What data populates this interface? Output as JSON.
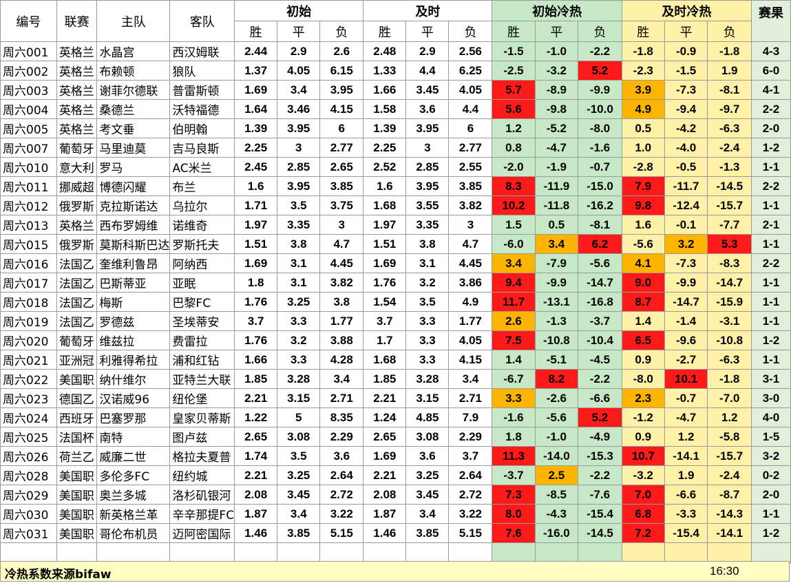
{
  "headers": {
    "id": "编号",
    "league": "联赛",
    "home": "主队",
    "away": "客队",
    "initial": "初始",
    "live": "及时",
    "initial_heat": "初始冷热",
    "live_heat": "及时冷热",
    "result": "赛果",
    "win": "胜",
    "draw": "平",
    "loss": "负"
  },
  "rows": [
    {
      "id": "周六001",
      "league": "英格兰",
      "home": "水晶宫",
      "away": "西汉姆联",
      "o": [
        "2.44",
        "2.9",
        "2.6"
      ],
      "l": [
        "2.48",
        "2.9",
        "2.56"
      ],
      "ih": [
        "-1.5",
        "-1.0",
        "-2.2"
      ],
      "lh": [
        "-1.8",
        "-0.9",
        "-1.8"
      ],
      "res": "4-3",
      "ihc": [
        "",
        "",
        ""
      ],
      "lhc": [
        "",
        "",
        ""
      ]
    },
    {
      "id": "周六002",
      "league": "英格兰",
      "home": "布赖顿",
      "away": "狼队",
      "o": [
        "1.37",
        "4.05",
        "6.15"
      ],
      "l": [
        "1.33",
        "4.4",
        "6.25"
      ],
      "ih": [
        "-2.5",
        "-3.2",
        "5.2"
      ],
      "lh": [
        "-2.3",
        "-1.5",
        "1.9"
      ],
      "res": "6-0",
      "ihc": [
        "",
        "",
        "red"
      ],
      "lhc": [
        "",
        "",
        ""
      ]
    },
    {
      "id": "周六003",
      "league": "英格兰",
      "home": "谢菲尔德联",
      "away": "普雷斯顿",
      "o": [
        "1.69",
        "3.4",
        "3.95"
      ],
      "l": [
        "1.66",
        "3.45",
        "4.05"
      ],
      "ih": [
        "5.7",
        "-8.9",
        "-9.9"
      ],
      "lh": [
        "3.9",
        "-7.3",
        "-8.1"
      ],
      "res": "4-1",
      "ihc": [
        "red",
        "",
        ""
      ],
      "lhc": [
        "org",
        "",
        ""
      ]
    },
    {
      "id": "周六004",
      "league": "英格兰",
      "home": "桑德兰",
      "away": "沃特福德",
      "o": [
        "1.64",
        "3.46",
        "4.15"
      ],
      "l": [
        "1.58",
        "3.6",
        "4.4"
      ],
      "ih": [
        "5.6",
        "-9.8",
        "-10.0"
      ],
      "lh": [
        "4.9",
        "-9.4",
        "-9.7"
      ],
      "res": "2-2",
      "ihc": [
        "red",
        "",
        ""
      ],
      "lhc": [
        "org",
        "",
        ""
      ]
    },
    {
      "id": "周六005",
      "league": "英格兰",
      "home": "考文垂",
      "away": "伯明翰",
      "o": [
        "1.39",
        "3.95",
        "6"
      ],
      "l": [
        "1.39",
        "3.95",
        "6"
      ],
      "ih": [
        "1.2",
        "-5.2",
        "-8.0"
      ],
      "lh": [
        "0.5",
        "-4.2",
        "-6.3"
      ],
      "res": "2-0",
      "ihc": [
        "",
        "",
        ""
      ],
      "lhc": [
        "",
        "",
        ""
      ]
    },
    {
      "id": "周六007",
      "league": "葡萄牙",
      "home": "马里迪莫",
      "away": "吉马良斯",
      "o": [
        "2.25",
        "3",
        "2.77"
      ],
      "l": [
        "2.25",
        "3",
        "2.77"
      ],
      "ih": [
        "0.8",
        "-4.7",
        "-1.6"
      ],
      "lh": [
        "1.0",
        "-4.0",
        "-2.4"
      ],
      "res": "1-2",
      "ihc": [
        "",
        "",
        ""
      ],
      "lhc": [
        "",
        "",
        ""
      ]
    },
    {
      "id": "周六010",
      "league": "意大利",
      "home": "罗马",
      "away": "AC米兰",
      "o": [
        "2.45",
        "2.85",
        "2.65"
      ],
      "l": [
        "2.52",
        "2.85",
        "2.55"
      ],
      "ih": [
        "-2.0",
        "-1.9",
        "-0.7"
      ],
      "lh": [
        "-2.8",
        "-0.5",
        "-1.3"
      ],
      "res": "1-1",
      "ihc": [
        "",
        "",
        ""
      ],
      "lhc": [
        "",
        "",
        ""
      ]
    },
    {
      "id": "周六011",
      "league": "挪威超",
      "home": "博德闪耀",
      "away": "布兰",
      "o": [
        "1.6",
        "3.95",
        "3.85"
      ],
      "l": [
        "1.6",
        "3.95",
        "3.85"
      ],
      "ih": [
        "8.3",
        "-11.9",
        "-15.0"
      ],
      "lh": [
        "7.9",
        "-11.7",
        "-14.5"
      ],
      "res": "2-2",
      "ihc": [
        "red",
        "",
        ""
      ],
      "lhc": [
        "red",
        "",
        ""
      ]
    },
    {
      "id": "周六012",
      "league": "俄罗斯",
      "home": "克拉斯诺达",
      "away": "乌拉尔",
      "o": [
        "1.71",
        "3.5",
        "3.75"
      ],
      "l": [
        "1.68",
        "3.55",
        "3.82"
      ],
      "ih": [
        "10.2",
        "-11.8",
        "-16.2"
      ],
      "lh": [
        "9.8",
        "-12.4",
        "-15.7"
      ],
      "res": "1-1",
      "ihc": [
        "red",
        "",
        ""
      ],
      "lhc": [
        "red",
        "",
        ""
      ]
    },
    {
      "id": "周六013",
      "league": "英格兰",
      "home": "西布罗姆维",
      "away": "诺维奇",
      "o": [
        "1.97",
        "3.35",
        "3"
      ],
      "l": [
        "1.97",
        "3.35",
        "3"
      ],
      "ih": [
        "1.5",
        "0.5",
        "-8.1"
      ],
      "lh": [
        "1.6",
        "-0.1",
        "-7.7"
      ],
      "res": "2-1",
      "ihc": [
        "",
        "",
        ""
      ],
      "lhc": [
        "",
        "",
        ""
      ]
    },
    {
      "id": "周六015",
      "league": "俄罗斯",
      "home": "莫斯科斯巴达",
      "away": "罗斯托夫",
      "o": [
        "1.51",
        "3.8",
        "4.7"
      ],
      "l": [
        "1.51",
        "3.8",
        "4.7"
      ],
      "ih": [
        "-6.0",
        "3.4",
        "6.2"
      ],
      "lh": [
        "-5.6",
        "3.2",
        "5.3"
      ],
      "res": "1-1",
      "ihc": [
        "",
        "org",
        "red"
      ],
      "lhc": [
        "",
        "org",
        "red"
      ]
    },
    {
      "id": "周六016",
      "league": "法国乙",
      "home": "奎维利鲁昂",
      "away": "阿纳西",
      "o": [
        "1.69",
        "3.1",
        "4.45"
      ],
      "l": [
        "1.69",
        "3.1",
        "4.45"
      ],
      "ih": [
        "3.4",
        "-7.9",
        "-5.6"
      ],
      "lh": [
        "4.1",
        "-7.3",
        "-8.3"
      ],
      "res": "2-2",
      "ihc": [
        "org",
        "",
        ""
      ],
      "lhc": [
        "org",
        "",
        ""
      ]
    },
    {
      "id": "周六017",
      "league": "法国乙",
      "home": "巴斯蒂亚",
      "away": "亚眠",
      "o": [
        "1.8",
        "3.1",
        "3.82"
      ],
      "l": [
        "1.76",
        "3.2",
        "3.86"
      ],
      "ih": [
        "9.4",
        "-9.9",
        "-14.7"
      ],
      "lh": [
        "9.0",
        "-9.9",
        "-14.7"
      ],
      "res": "1-1",
      "ihc": [
        "red",
        "",
        ""
      ],
      "lhc": [
        "red",
        "",
        ""
      ]
    },
    {
      "id": "周六018",
      "league": "法国乙",
      "home": "梅斯",
      "away": "巴黎FC",
      "o": [
        "1.76",
        "3.25",
        "3.8"
      ],
      "l": [
        "1.54",
        "3.5",
        "4.9"
      ],
      "ih": [
        "11.7",
        "-13.1",
        "-16.8"
      ],
      "lh": [
        "8.7",
        "-14.7",
        "-15.9"
      ],
      "res": "1-1",
      "ihc": [
        "red",
        "",
        ""
      ],
      "lhc": [
        "red",
        "",
        ""
      ]
    },
    {
      "id": "周六019",
      "league": "法国乙",
      "home": "罗德兹",
      "away": "圣埃蒂安",
      "o": [
        "3.7",
        "3.3",
        "1.77"
      ],
      "l": [
        "3.7",
        "3.3",
        "1.77"
      ],
      "ih": [
        "2.6",
        "-1.3",
        "-3.7"
      ],
      "lh": [
        "1.4",
        "-1.4",
        "-3.1"
      ],
      "res": "1-1",
      "ihc": [
        "org",
        "",
        ""
      ],
      "lhc": [
        "",
        "",
        ""
      ]
    },
    {
      "id": "周六020",
      "league": "葡萄牙",
      "home": "维兹拉",
      "away": "费雷拉",
      "o": [
        "1.76",
        "3.2",
        "3.88"
      ],
      "l": [
        "1.7",
        "3.3",
        "4.05"
      ],
      "ih": [
        "7.5",
        "-10.8",
        "-10.4"
      ],
      "lh": [
        "6.5",
        "-9.6",
        "-10.8"
      ],
      "res": "1-2",
      "ihc": [
        "red",
        "",
        ""
      ],
      "lhc": [
        "red",
        "",
        ""
      ]
    },
    {
      "id": "周六021",
      "league": "亚洲冠",
      "home": "利雅得希拉",
      "away": "浦和红钻",
      "o": [
        "1.66",
        "3.3",
        "4.28"
      ],
      "l": [
        "1.68",
        "3.3",
        "4.15"
      ],
      "ih": [
        "1.4",
        "-5.1",
        "-4.5"
      ],
      "lh": [
        "0.9",
        "-2.7",
        "-6.3"
      ],
      "res": "1-1",
      "ihc": [
        "",
        "",
        ""
      ],
      "lhc": [
        "",
        "",
        ""
      ]
    },
    {
      "id": "周六022",
      "league": "美国职",
      "home": "纳什维尔",
      "away": "亚特兰大联",
      "o": [
        "1.85",
        "3.28",
        "3.4"
      ],
      "l": [
        "1.85",
        "3.28",
        "3.4"
      ],
      "ih": [
        "-6.7",
        "8.2",
        "-2.2"
      ],
      "lh": [
        "-8.0",
        "10.1",
        "-1.8"
      ],
      "res": "3-1",
      "ihc": [
        "",
        "red",
        ""
      ],
      "lhc": [
        "",
        "red",
        ""
      ]
    },
    {
      "id": "周六023",
      "league": "德国乙",
      "home": "汉诺威96",
      "away": "纽伦堡",
      "o": [
        "2.21",
        "3.15",
        "2.71"
      ],
      "l": [
        "2.21",
        "3.15",
        "2.71"
      ],
      "ih": [
        "3.3",
        "-2.6",
        "-6.6"
      ],
      "lh": [
        "2.3",
        "-0.7",
        "-7.0"
      ],
      "res": "3-0",
      "ihc": [
        "org",
        "",
        ""
      ],
      "lhc": [
        "org",
        "",
        ""
      ]
    },
    {
      "id": "周六024",
      "league": "西班牙",
      "home": "巴塞罗那",
      "away": "皇家贝蒂斯",
      "o": [
        "1.22",
        "5",
        "8.35"
      ],
      "l": [
        "1.24",
        "4.85",
        "7.9"
      ],
      "ih": [
        "-1.6",
        "-5.6",
        "5.2"
      ],
      "lh": [
        "-1.2",
        "-4.7",
        "1.2"
      ],
      "res": "4-0",
      "ihc": [
        "",
        "",
        "red"
      ],
      "lhc": [
        "",
        "",
        ""
      ]
    },
    {
      "id": "周六025",
      "league": "法国杯",
      "home": "南特",
      "away": "图卢兹",
      "o": [
        "2.65",
        "3.08",
        "2.29"
      ],
      "l": [
        "2.65",
        "3.08",
        "2.29"
      ],
      "ih": [
        "1.8",
        "-1.0",
        "-4.9"
      ],
      "lh": [
        "0.9",
        "1.2",
        "-5.8"
      ],
      "res": "1-5",
      "ihc": [
        "",
        "",
        ""
      ],
      "lhc": [
        "",
        "",
        ""
      ]
    },
    {
      "id": "周六026",
      "league": "荷兰乙",
      "home": "威廉二世",
      "away": "格拉夫夏普",
      "o": [
        "1.74",
        "3.5",
        "3.6"
      ],
      "l": [
        "1.69",
        "3.6",
        "3.7"
      ],
      "ih": [
        "11.3",
        "-14.0",
        "-15.3"
      ],
      "lh": [
        "10.7",
        "-14.1",
        "-15.7"
      ],
      "res": "3-2",
      "ihc": [
        "red",
        "",
        ""
      ],
      "lhc": [
        "red",
        "",
        ""
      ]
    },
    {
      "id": "周六028",
      "league": "美国职",
      "home": "多伦多FC",
      "away": "纽约城",
      "o": [
        "2.21",
        "3.25",
        "2.64"
      ],
      "l": [
        "2.21",
        "3.25",
        "2.64"
      ],
      "ih": [
        "-3.7",
        "2.5",
        "-2.2"
      ],
      "lh": [
        "-3.2",
        "1.9",
        "-2.4"
      ],
      "res": "0-2",
      "ihc": [
        "",
        "org",
        ""
      ],
      "lhc": [
        "",
        "",
        ""
      ]
    },
    {
      "id": "周六029",
      "league": "美国职",
      "home": "奥兰多城",
      "away": "洛杉矶银河",
      "o": [
        "2.08",
        "3.45",
        "2.72"
      ],
      "l": [
        "2.08",
        "3.45",
        "2.72"
      ],
      "ih": [
        "7.3",
        "-8.5",
        "-7.6"
      ],
      "lh": [
        "7.0",
        "-6.6",
        "-8.7"
      ],
      "res": "2-0",
      "ihc": [
        "red",
        "",
        ""
      ],
      "lhc": [
        "red",
        "",
        ""
      ]
    },
    {
      "id": "周六030",
      "league": "美国职",
      "home": "新英格兰革",
      "away": "辛辛那提FC",
      "o": [
        "1.87",
        "3.4",
        "3.22"
      ],
      "l": [
        "1.87",
        "3.4",
        "3.22"
      ],
      "ih": [
        "8.0",
        "-4.3",
        "-15.4"
      ],
      "lh": [
        "6.8",
        "-3.3",
        "-14.3"
      ],
      "res": "1-1",
      "ihc": [
        "red",
        "",
        ""
      ],
      "lhc": [
        "red",
        "",
        ""
      ]
    },
    {
      "id": "周六031",
      "league": "美国职",
      "home": "哥伦布机员",
      "away": "迈阿密国际",
      "o": [
        "1.46",
        "3.85",
        "5.15"
      ],
      "l": [
        "1.46",
        "3.85",
        "5.15"
      ],
      "ih": [
        "7.6",
        "-16.0",
        "-14.5"
      ],
      "lh": [
        "7.2",
        "-15.4",
        "-14.1"
      ],
      "res": "1-2",
      "ihc": [
        "red",
        "",
        ""
      ],
      "lhc": [
        "red",
        "",
        ""
      ]
    }
  ],
  "footer": {
    "source": "冷热系数来源bifaw",
    "time": "16:30"
  }
}
